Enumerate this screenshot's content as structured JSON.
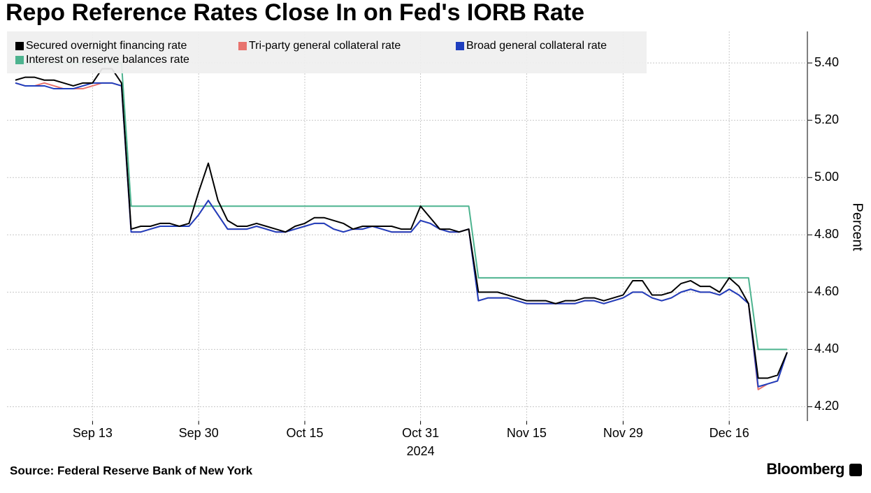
{
  "chart_data": {
    "type": "line",
    "title": "Repo Reference Rates Close In on Fed's IORB Rate",
    "y_label": "Percent",
    "source": "Source: Federal Reserve Bank of New York",
    "brand": "Bloomberg",
    "x_year_label": "2024",
    "x": [
      "Sep 3",
      "Sep 4",
      "Sep 5",
      "Sep 6",
      "Sep 9",
      "Sep 10",
      "Sep 11",
      "Sep 12",
      "Sep 13",
      "Sep 16",
      "Sep 17",
      "Sep 18",
      "Sep 19",
      "Sep 20",
      "Sep 23",
      "Sep 24",
      "Sep 25",
      "Sep 26",
      "Sep 27",
      "Sep 30",
      "Oct 1",
      "Oct 2",
      "Oct 3",
      "Oct 4",
      "Oct 7",
      "Oct 8",
      "Oct 9",
      "Oct 10",
      "Oct 11",
      "Oct 14",
      "Oct 15",
      "Oct 16",
      "Oct 17",
      "Oct 18",
      "Oct 21",
      "Oct 22",
      "Oct 23",
      "Oct 24",
      "Oct 25",
      "Oct 28",
      "Oct 29",
      "Oct 30",
      "Oct 31",
      "Nov 1",
      "Nov 4",
      "Nov 5",
      "Nov 6",
      "Nov 7",
      "Nov 8",
      "Nov 11",
      "Nov 12",
      "Nov 13",
      "Nov 14",
      "Nov 15",
      "Nov 18",
      "Nov 19",
      "Nov 20",
      "Nov 21",
      "Nov 22",
      "Nov 25",
      "Nov 26",
      "Nov 27",
      "Nov 28",
      "Nov 29",
      "Dec 2",
      "Dec 3",
      "Dec 4",
      "Dec 5",
      "Dec 6",
      "Dec 9",
      "Dec 10",
      "Dec 11",
      "Dec 12",
      "Dec 13",
      "Dec 16",
      "Dec 17",
      "Dec 18",
      "Dec 19",
      "Dec 20",
      "Dec 23",
      "Dec 24"
    ],
    "xticks": [
      "Sep 13",
      "Sep 30",
      "Oct 15",
      "Oct 31",
      "Nov 15",
      "Nov 29",
      "Dec 16"
    ],
    "ylim": [
      4.15,
      5.51
    ],
    "yticks": [
      {
        "value": 4.2,
        "label": "4.20"
      },
      {
        "value": 4.4,
        "label": "4.40"
      },
      {
        "value": 4.6,
        "label": "4.60"
      },
      {
        "value": 4.8,
        "label": "4.80"
      },
      {
        "value": 5.0,
        "label": "5.00"
      },
      {
        "value": 5.2,
        "label": "5.20"
      },
      {
        "value": 5.4,
        "label": "5.40"
      }
    ],
    "grid": true,
    "legend": "top-left",
    "series": [
      {
        "name": "Secured overnight financing rate",
        "color": "#000000",
        "values": [
          5.34,
          5.35,
          5.35,
          5.34,
          5.34,
          5.33,
          5.32,
          5.33,
          5.33,
          5.38,
          5.38,
          5.33,
          4.82,
          4.83,
          4.83,
          4.84,
          4.84,
          4.83,
          4.84,
          4.95,
          5.05,
          4.92,
          4.85,
          4.83,
          4.83,
          4.84,
          4.83,
          4.82,
          4.81,
          4.83,
          4.84,
          4.86,
          4.86,
          4.85,
          4.84,
          4.82,
          4.83,
          4.83,
          4.83,
          4.83,
          4.82,
          4.82,
          4.9,
          4.86,
          4.82,
          4.82,
          4.81,
          4.82,
          4.6,
          4.6,
          4.6,
          4.59,
          4.58,
          4.57,
          4.57,
          4.57,
          4.56,
          4.57,
          4.57,
          4.58,
          4.58,
          4.57,
          4.58,
          4.59,
          4.64,
          4.64,
          4.59,
          4.59,
          4.6,
          4.63,
          4.64,
          4.62,
          4.62,
          4.6,
          4.65,
          4.62,
          4.56,
          4.3,
          4.3,
          4.31,
          4.39
        ]
      },
      {
        "name": "Tri-party general collateral rate",
        "color": "#e8736e",
        "values": [
          5.33,
          5.32,
          5.32,
          5.33,
          5.32,
          5.31,
          5.31,
          5.31,
          5.32,
          5.33,
          5.33,
          5.32,
          4.81,
          4.81,
          4.82,
          4.83,
          4.83,
          4.83,
          4.83,
          4.87,
          4.92,
          4.87,
          4.82,
          4.82,
          4.82,
          4.83,
          4.82,
          4.81,
          4.81,
          4.82,
          4.83,
          4.84,
          4.84,
          4.82,
          4.81,
          4.82,
          4.82,
          4.83,
          4.82,
          4.81,
          4.81,
          4.81,
          4.85,
          4.84,
          4.82,
          4.81,
          4.81,
          4.82,
          4.57,
          4.58,
          4.58,
          4.58,
          4.57,
          4.56,
          4.56,
          4.56,
          4.56,
          4.56,
          4.56,
          4.57,
          4.57,
          4.56,
          4.57,
          4.58,
          4.6,
          4.6,
          4.58,
          4.57,
          4.58,
          4.6,
          4.61,
          4.6,
          4.6,
          4.59,
          4.61,
          4.59,
          4.56,
          4.26,
          4.28,
          4.29,
          4.39
        ]
      },
      {
        "name": "Broad general collateral rate",
        "color": "#1f3fbf",
        "values": [
          5.33,
          5.32,
          5.32,
          5.32,
          5.31,
          5.31,
          5.31,
          5.32,
          5.33,
          5.33,
          5.33,
          5.32,
          4.81,
          4.81,
          4.82,
          4.83,
          4.83,
          4.83,
          4.83,
          4.87,
          4.92,
          4.87,
          4.82,
          4.82,
          4.82,
          4.83,
          4.82,
          4.81,
          4.81,
          4.82,
          4.83,
          4.84,
          4.84,
          4.82,
          4.81,
          4.82,
          4.82,
          4.83,
          4.82,
          4.81,
          4.81,
          4.81,
          4.85,
          4.84,
          4.82,
          4.81,
          4.81,
          4.82,
          4.57,
          4.58,
          4.58,
          4.58,
          4.57,
          4.56,
          4.56,
          4.56,
          4.56,
          4.56,
          4.56,
          4.57,
          4.57,
          4.56,
          4.57,
          4.58,
          4.6,
          4.6,
          4.58,
          4.57,
          4.58,
          4.6,
          4.61,
          4.6,
          4.6,
          4.59,
          4.61,
          4.59,
          4.56,
          4.27,
          4.28,
          4.29,
          4.39
        ]
      },
      {
        "name": "Interest on reserve balances rate",
        "color": "#4db38f",
        "values": [
          5.4,
          5.4,
          5.4,
          5.4,
          5.4,
          5.4,
          5.4,
          5.4,
          5.4,
          5.4,
          5.4,
          5.4,
          4.9,
          4.9,
          4.9,
          4.9,
          4.9,
          4.9,
          4.9,
          4.9,
          4.9,
          4.9,
          4.9,
          4.9,
          4.9,
          4.9,
          4.9,
          4.9,
          4.9,
          4.9,
          4.9,
          4.9,
          4.9,
          4.9,
          4.9,
          4.9,
          4.9,
          4.9,
          4.9,
          4.9,
          4.9,
          4.9,
          4.9,
          4.9,
          4.9,
          4.9,
          4.9,
          4.9,
          4.65,
          4.65,
          4.65,
          4.65,
          4.65,
          4.65,
          4.65,
          4.65,
          4.65,
          4.65,
          4.65,
          4.65,
          4.65,
          4.65,
          4.65,
          4.65,
          4.65,
          4.65,
          4.65,
          4.65,
          4.65,
          4.65,
          4.65,
          4.65,
          4.65,
          4.65,
          4.65,
          4.65,
          4.65,
          4.4,
          4.4,
          4.4,
          4.4
        ]
      }
    ]
  }
}
